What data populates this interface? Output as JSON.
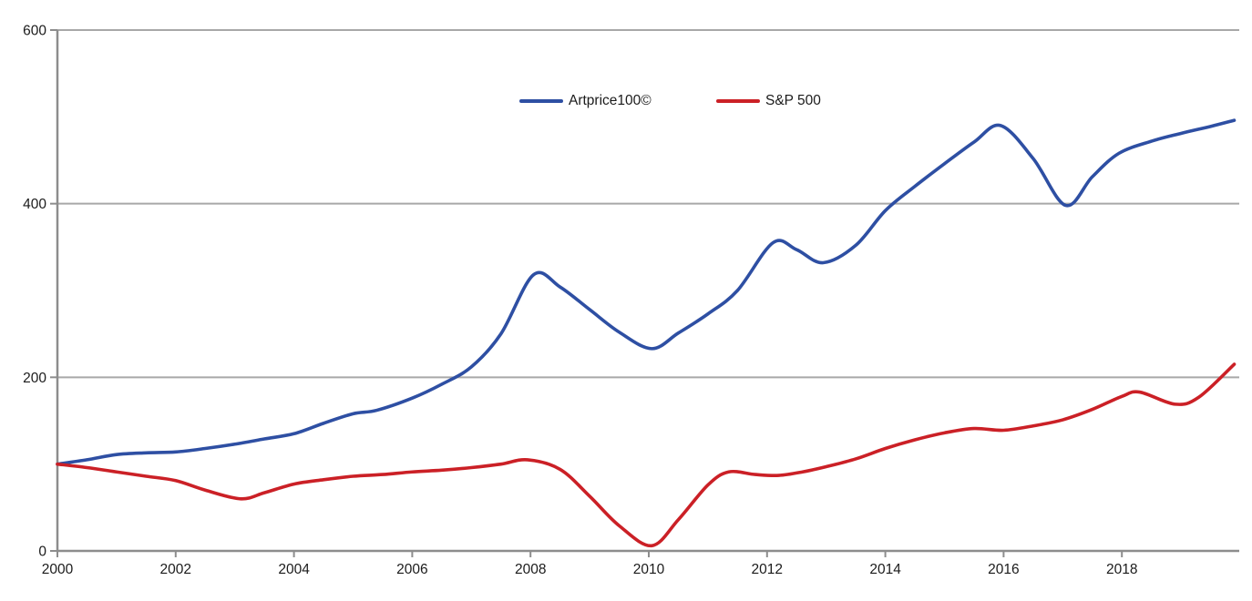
{
  "chart_data": {
    "type": "line",
    "title": "",
    "xlabel": "",
    "ylabel": "",
    "xlim": [
      2000,
      2019.9
    ],
    "ylim": [
      0,
      600
    ],
    "x_ticks": [
      2000,
      2002,
      2004,
      2006,
      2008,
      2010,
      2012,
      2014,
      2016,
      2018
    ],
    "y_ticks": [
      0,
      200,
      400,
      600
    ],
    "grid": "horizontal",
    "legend_position": "top-center",
    "style": {
      "grid_color": "#a8a8a8",
      "axis_color": "#8d8d8d",
      "tick_label_color": "#1b1b1b",
      "background": "#ffffff"
    },
    "series": [
      {
        "id": "artprice100",
        "name": "Artprice100©",
        "color": "#2e4fa3",
        "x": [
          2000,
          2000.5,
          2001,
          2001.5,
          2002,
          2002.5,
          2003,
          2003.5,
          2004,
          2004.5,
          2005,
          2005.4,
          2006,
          2006.5,
          2007,
          2007.5,
          2008.05,
          2008.5,
          2009,
          2009.5,
          2010.05,
          2010.5,
          2011,
          2011.5,
          2012.1,
          2012.5,
          2012.95,
          2013.5,
          2014,
          2014.5,
          2015,
          2015.5,
          2015.95,
          2016.5,
          2017.05,
          2017.5,
          2017.95,
          2018.5,
          2019,
          2019.5,
          2019.9
        ],
        "values": [
          100,
          105,
          111,
          113,
          114,
          118,
          123,
          129,
          135,
          147,
          158,
          162,
          176,
          192,
          212,
          250,
          318,
          304,
          278,
          252,
          233,
          251,
          273,
          300,
          355,
          347,
          332,
          352,
          392,
          420,
          446,
          471,
          490,
          452,
          398,
          431,
          458,
          472,
          481,
          489,
          496
        ]
      },
      {
        "id": "sp500",
        "name": "S&P 500",
        "color": "#cb2026",
        "x": [
          2000,
          2000.5,
          2001,
          2001.5,
          2002,
          2002.5,
          2003.1,
          2003.5,
          2004,
          2004.5,
          2005,
          2005.5,
          2006,
          2006.5,
          2007,
          2007.5,
          2007.95,
          2008.5,
          2009,
          2009.5,
          2010.05,
          2010.5,
          2011,
          2011.35,
          2011.8,
          2012.2,
          2012.6,
          2013,
          2013.5,
          2014,
          2014.5,
          2015,
          2015.5,
          2016,
          2016.5,
          2017,
          2017.5,
          2018,
          2018.3,
          2018.9,
          2019.3,
          2019.9
        ],
        "values": [
          100,
          96,
          91,
          86,
          81,
          70,
          60,
          67,
          77,
          82,
          86,
          88,
          91,
          93,
          96,
          100,
          105,
          94,
          63,
          29,
          6,
          36,
          76,
          91,
          88,
          87,
          91,
          97,
          106,
          118,
          128,
          136,
          141,
          139,
          144,
          151,
          163,
          178,
          183,
          169,
          177,
          215
        ]
      }
    ]
  }
}
